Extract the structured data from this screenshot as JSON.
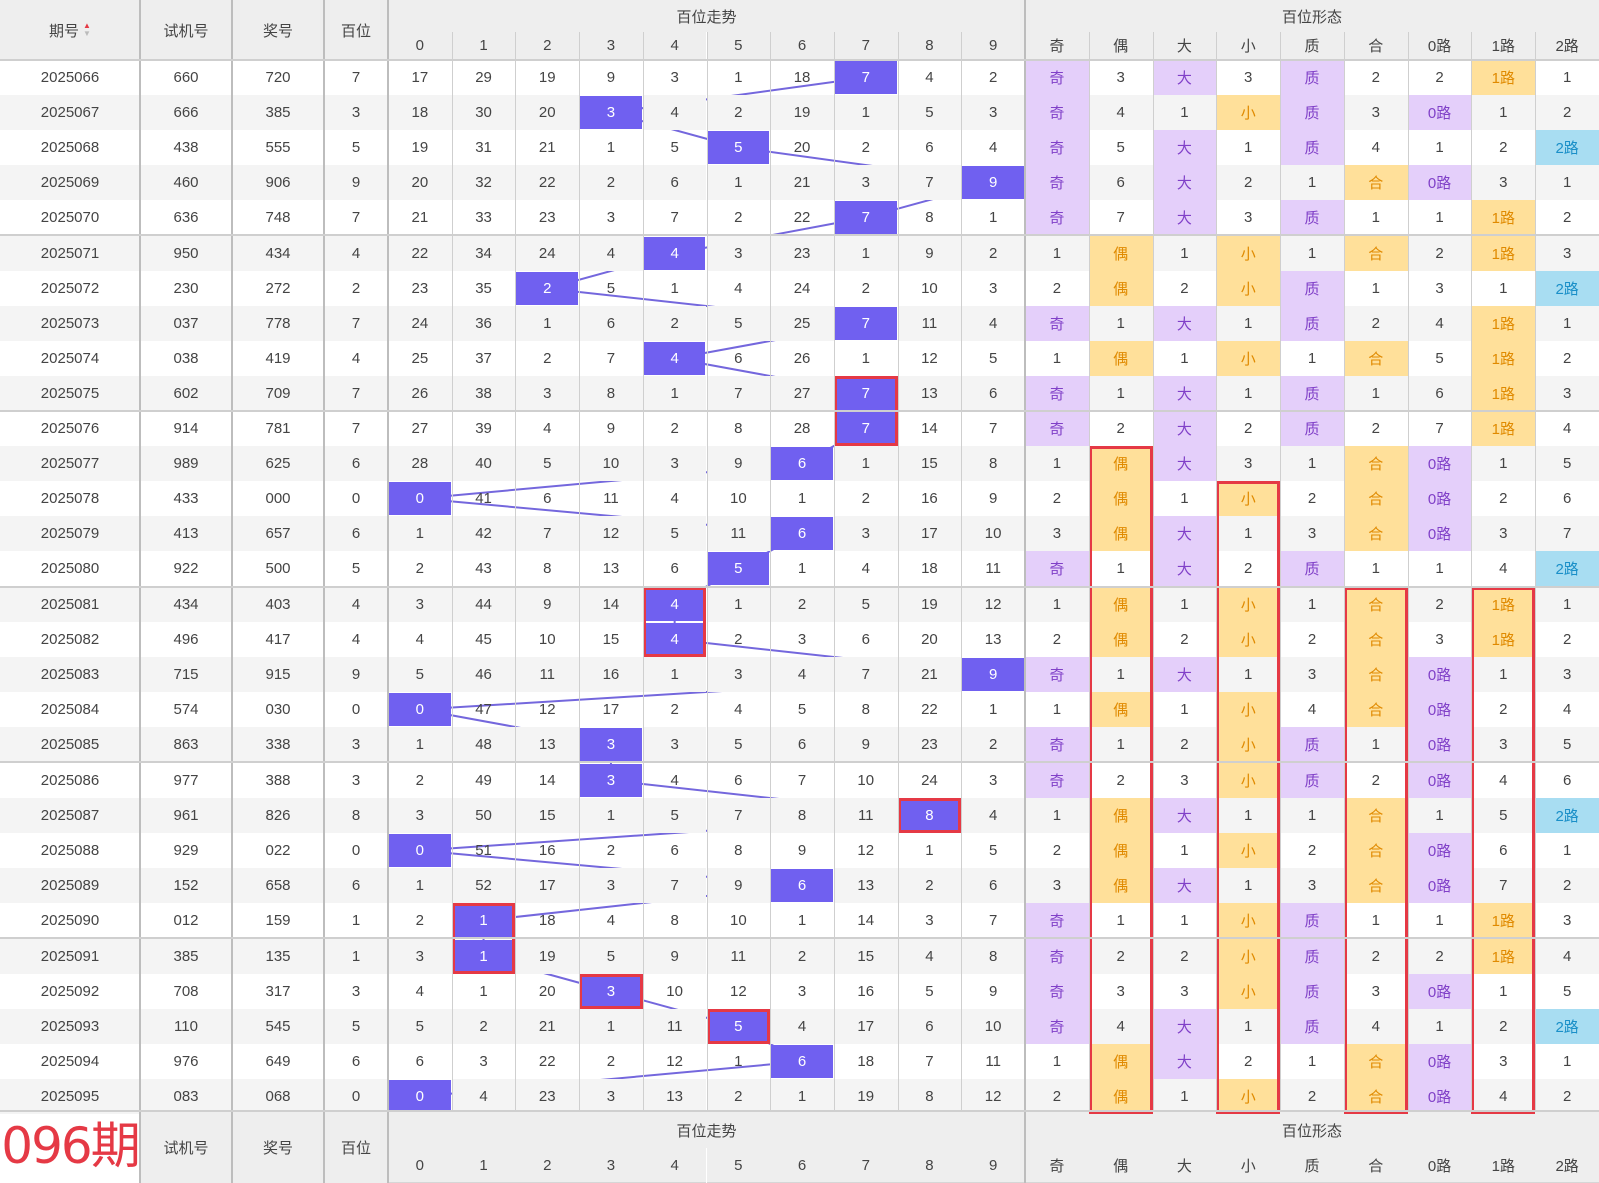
{
  "header": {
    "issue": "期号",
    "sort_icon": "sort-arrows-icon",
    "trial": "试机号",
    "prize": "奖号",
    "hundreds": "百位",
    "trend_group": "百位走势",
    "form_group": "百位形态",
    "digits": [
      "0",
      "1",
      "2",
      "3",
      "4",
      "5",
      "6",
      "7",
      "8",
      "9"
    ],
    "forms": [
      "奇",
      "偶",
      "大",
      "小",
      "质",
      "合",
      "0路",
      "1路",
      "2路"
    ]
  },
  "footer": {
    "next_issue": "096期",
    "trial": "试机号",
    "prize": "奖号",
    "hundreds": "百位",
    "trend_group": "百位走势",
    "form_group": "百位形态"
  },
  "colors": {
    "hit": "#7060f0",
    "purple_bg": "#e4cffa",
    "purple_text": "#8040c8",
    "orange_bg": "#ffe09a",
    "orange_text": "#e08a00",
    "blue_bg": "#a8ddf2",
    "blue_text": "#1a8fc8",
    "highlight_box": "#e53945",
    "header_bg": "#eeeeee"
  },
  "rows": [
    {
      "issue": "2025066",
      "trial": "660",
      "prize": "720",
      "h": "7",
      "trend": [
        "17",
        "29",
        "19",
        "9",
        "3",
        "1",
        "18",
        "7",
        "4",
        "2"
      ],
      "form": [
        "奇",
        "3",
        "大",
        "3",
        "质",
        "2",
        "2",
        "1路",
        "1"
      ]
    },
    {
      "issue": "2025067",
      "trial": "666",
      "prize": "385",
      "h": "3",
      "trend": [
        "18",
        "30",
        "20",
        "3",
        "4",
        "2",
        "19",
        "1",
        "5",
        "3"
      ],
      "form": [
        "奇",
        "4",
        "1",
        "小",
        "质",
        "3",
        "0路",
        "1",
        "2"
      ]
    },
    {
      "issue": "2025068",
      "trial": "438",
      "prize": "555",
      "h": "5",
      "trend": [
        "19",
        "31",
        "21",
        "1",
        "5",
        "5",
        "20",
        "2",
        "6",
        "4"
      ],
      "form": [
        "奇",
        "5",
        "大",
        "1",
        "质",
        "4",
        "1",
        "2",
        "2路"
      ]
    },
    {
      "issue": "2025069",
      "trial": "460",
      "prize": "906",
      "h": "9",
      "trend": [
        "20",
        "32",
        "22",
        "2",
        "6",
        "1",
        "21",
        "3",
        "7",
        "9"
      ],
      "form": [
        "奇",
        "6",
        "大",
        "2",
        "1",
        "合",
        "0路",
        "3",
        "1"
      ]
    },
    {
      "issue": "2025070",
      "trial": "636",
      "prize": "748",
      "h": "7",
      "trend": [
        "21",
        "33",
        "23",
        "3",
        "7",
        "2",
        "22",
        "7",
        "8",
        "1"
      ],
      "form": [
        "奇",
        "7",
        "大",
        "3",
        "质",
        "1",
        "1",
        "1路",
        "2"
      ]
    },
    {
      "issue": "2025071",
      "trial": "950",
      "prize": "434",
      "h": "4",
      "trend": [
        "22",
        "34",
        "24",
        "4",
        "4",
        "3",
        "23",
        "1",
        "9",
        "2"
      ],
      "form": [
        "1",
        "偶",
        "1",
        "小",
        "1",
        "合",
        "2",
        "1路",
        "3"
      ]
    },
    {
      "issue": "2025072",
      "trial": "230",
      "prize": "272",
      "h": "2",
      "trend": [
        "23",
        "35",
        "2",
        "5",
        "1",
        "4",
        "24",
        "2",
        "10",
        "3"
      ],
      "form": [
        "2",
        "偶",
        "2",
        "小",
        "质",
        "1",
        "3",
        "1",
        "2路"
      ]
    },
    {
      "issue": "2025073",
      "trial": "037",
      "prize": "778",
      "h": "7",
      "trend": [
        "24",
        "36",
        "1",
        "6",
        "2",
        "5",
        "25",
        "7",
        "11",
        "4"
      ],
      "form": [
        "奇",
        "1",
        "大",
        "1",
        "质",
        "2",
        "4",
        "1路",
        "1"
      ]
    },
    {
      "issue": "2025074",
      "trial": "038",
      "prize": "419",
      "h": "4",
      "trend": [
        "25",
        "37",
        "2",
        "7",
        "4",
        "6",
        "26",
        "1",
        "12",
        "5"
      ],
      "form": [
        "1",
        "偶",
        "1",
        "小",
        "1",
        "合",
        "5",
        "1路",
        "2"
      ]
    },
    {
      "issue": "2025075",
      "trial": "602",
      "prize": "709",
      "h": "7",
      "trend": [
        "26",
        "38",
        "3",
        "8",
        "1",
        "7",
        "27",
        "7",
        "13",
        "6"
      ],
      "form": [
        "奇",
        "1",
        "大",
        "1",
        "质",
        "1",
        "6",
        "1路",
        "3"
      ]
    },
    {
      "issue": "2025076",
      "trial": "914",
      "prize": "781",
      "h": "7",
      "trend": [
        "27",
        "39",
        "4",
        "9",
        "2",
        "8",
        "28",
        "7",
        "14",
        "7"
      ],
      "form": [
        "奇",
        "2",
        "大",
        "2",
        "质",
        "2",
        "7",
        "1路",
        "4"
      ]
    },
    {
      "issue": "2025077",
      "trial": "989",
      "prize": "625",
      "h": "6",
      "trend": [
        "28",
        "40",
        "5",
        "10",
        "3",
        "9",
        "6",
        "1",
        "15",
        "8"
      ],
      "form": [
        "1",
        "偶",
        "大",
        "3",
        "1",
        "合",
        "0路",
        "1",
        "5"
      ]
    },
    {
      "issue": "2025078",
      "trial": "433",
      "prize": "000",
      "h": "0",
      "trend": [
        "0",
        "41",
        "6",
        "11",
        "4",
        "10",
        "1",
        "2",
        "16",
        "9"
      ],
      "form": [
        "2",
        "偶",
        "1",
        "小",
        "2",
        "合",
        "0路",
        "2",
        "6"
      ]
    },
    {
      "issue": "2025079",
      "trial": "413",
      "prize": "657",
      "h": "6",
      "trend": [
        "1",
        "42",
        "7",
        "12",
        "5",
        "11",
        "6",
        "3",
        "17",
        "10"
      ],
      "form": [
        "3",
        "偶",
        "大",
        "1",
        "3",
        "合",
        "0路",
        "3",
        "7"
      ]
    },
    {
      "issue": "2025080",
      "trial": "922",
      "prize": "500",
      "h": "5",
      "trend": [
        "2",
        "43",
        "8",
        "13",
        "6",
        "5",
        "1",
        "4",
        "18",
        "11"
      ],
      "form": [
        "奇",
        "1",
        "大",
        "2",
        "质",
        "1",
        "1",
        "4",
        "2路"
      ]
    },
    {
      "issue": "2025081",
      "trial": "434",
      "prize": "403",
      "h": "4",
      "trend": [
        "3",
        "44",
        "9",
        "14",
        "4",
        "1",
        "2",
        "5",
        "19",
        "12"
      ],
      "form": [
        "1",
        "偶",
        "1",
        "小",
        "1",
        "合",
        "2",
        "1路",
        "1"
      ]
    },
    {
      "issue": "2025082",
      "trial": "496",
      "prize": "417",
      "h": "4",
      "trend": [
        "4",
        "45",
        "10",
        "15",
        "4",
        "2",
        "3",
        "6",
        "20",
        "13"
      ],
      "form": [
        "2",
        "偶",
        "2",
        "小",
        "2",
        "合",
        "3",
        "1路",
        "2"
      ]
    },
    {
      "issue": "2025083",
      "trial": "715",
      "prize": "915",
      "h": "9",
      "trend": [
        "5",
        "46",
        "11",
        "16",
        "1",
        "3",
        "4",
        "7",
        "21",
        "9"
      ],
      "form": [
        "奇",
        "1",
        "大",
        "1",
        "3",
        "合",
        "0路",
        "1",
        "3"
      ]
    },
    {
      "issue": "2025084",
      "trial": "574",
      "prize": "030",
      "h": "0",
      "trend": [
        "0",
        "47",
        "12",
        "17",
        "2",
        "4",
        "5",
        "8",
        "22",
        "1"
      ],
      "form": [
        "1",
        "偶",
        "1",
        "小",
        "4",
        "合",
        "0路",
        "2",
        "4"
      ]
    },
    {
      "issue": "2025085",
      "trial": "863",
      "prize": "338",
      "h": "3",
      "trend": [
        "1",
        "48",
        "13",
        "3",
        "3",
        "5",
        "6",
        "9",
        "23",
        "2"
      ],
      "form": [
        "奇",
        "1",
        "2",
        "小",
        "质",
        "1",
        "0路",
        "3",
        "5"
      ]
    },
    {
      "issue": "2025086",
      "trial": "977",
      "prize": "388",
      "h": "3",
      "trend": [
        "2",
        "49",
        "14",
        "3",
        "4",
        "6",
        "7",
        "10",
        "24",
        "3"
      ],
      "form": [
        "奇",
        "2",
        "3",
        "小",
        "质",
        "2",
        "0路",
        "4",
        "6"
      ]
    },
    {
      "issue": "2025087",
      "trial": "961",
      "prize": "826",
      "h": "8",
      "trend": [
        "3",
        "50",
        "15",
        "1",
        "5",
        "7",
        "8",
        "11",
        "8",
        "4"
      ],
      "form": [
        "1",
        "偶",
        "大",
        "1",
        "1",
        "合",
        "1",
        "5",
        "2路"
      ]
    },
    {
      "issue": "2025088",
      "trial": "929",
      "prize": "022",
      "h": "0",
      "trend": [
        "0",
        "51",
        "16",
        "2",
        "6",
        "8",
        "9",
        "12",
        "1",
        "5"
      ],
      "form": [
        "2",
        "偶",
        "1",
        "小",
        "2",
        "合",
        "0路",
        "6",
        "1"
      ]
    },
    {
      "issue": "2025089",
      "trial": "152",
      "prize": "658",
      "h": "6",
      "trend": [
        "1",
        "52",
        "17",
        "3",
        "7",
        "9",
        "6",
        "13",
        "2",
        "6"
      ],
      "form": [
        "3",
        "偶",
        "大",
        "1",
        "3",
        "合",
        "0路",
        "7",
        "2"
      ]
    },
    {
      "issue": "2025090",
      "trial": "012",
      "prize": "159",
      "h": "1",
      "trend": [
        "2",
        "1",
        "18",
        "4",
        "8",
        "10",
        "1",
        "14",
        "3",
        "7"
      ],
      "form": [
        "奇",
        "1",
        "1",
        "小",
        "质",
        "1",
        "1",
        "1路",
        "3"
      ]
    },
    {
      "issue": "2025091",
      "trial": "385",
      "prize": "135",
      "h": "1",
      "trend": [
        "3",
        "1",
        "19",
        "5",
        "9",
        "11",
        "2",
        "15",
        "4",
        "8"
      ],
      "form": [
        "奇",
        "2",
        "2",
        "小",
        "质",
        "2",
        "2",
        "1路",
        "4"
      ]
    },
    {
      "issue": "2025092",
      "trial": "708",
      "prize": "317",
      "h": "3",
      "trend": [
        "4",
        "1",
        "20",
        "3",
        "10",
        "12",
        "3",
        "16",
        "5",
        "9"
      ],
      "form": [
        "奇",
        "3",
        "3",
        "小",
        "质",
        "3",
        "0路",
        "1",
        "5"
      ]
    },
    {
      "issue": "2025093",
      "trial": "110",
      "prize": "545",
      "h": "5",
      "trend": [
        "5",
        "2",
        "21",
        "1",
        "11",
        "5",
        "4",
        "17",
        "6",
        "10"
      ],
      "form": [
        "奇",
        "4",
        "大",
        "1",
        "质",
        "4",
        "1",
        "2",
        "2路"
      ]
    },
    {
      "issue": "2025094",
      "trial": "976",
      "prize": "649",
      "h": "6",
      "trend": [
        "6",
        "3",
        "22",
        "2",
        "12",
        "1",
        "6",
        "18",
        "7",
        "11"
      ],
      "form": [
        "1",
        "偶",
        "大",
        "2",
        "1",
        "合",
        "0路",
        "3",
        "1"
      ]
    },
    {
      "issue": "2025095",
      "trial": "083",
      "prize": "068",
      "h": "0",
      "trend": [
        "0",
        "4",
        "23",
        "3",
        "13",
        "2",
        "1",
        "19",
        "8",
        "12"
      ],
      "form": [
        "2",
        "偶",
        "1",
        "小",
        "2",
        "合",
        "0路",
        "4",
        "2"
      ]
    }
  ]
}
